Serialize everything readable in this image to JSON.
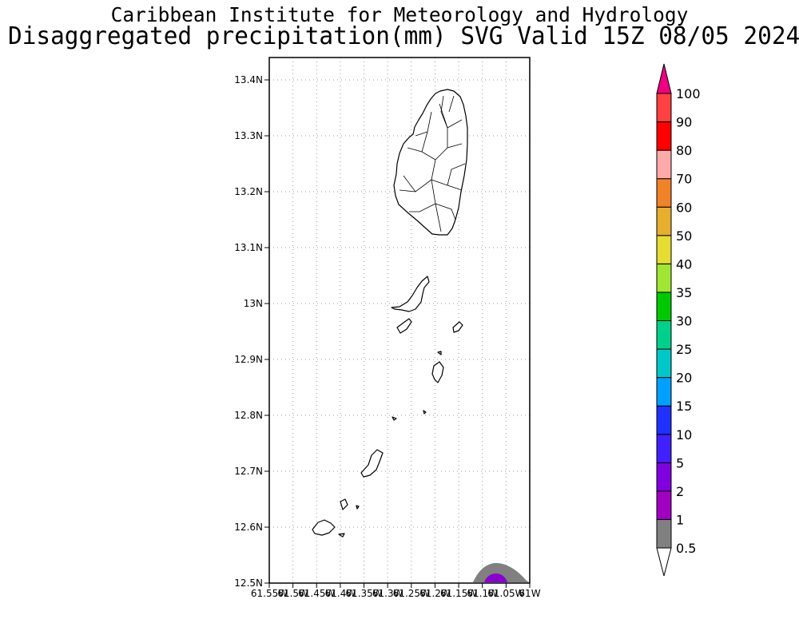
{
  "header": {
    "title_line1": "Caribbean Institute for Meteorology and Hydrology",
    "title_line2": "Disaggregated precipitation(mm) SVG Valid 15Z 08/05 2024"
  },
  "map": {
    "lon_range": [
      -61.55,
      -61.0
    ],
    "lat_range": [
      12.5,
      13.44
    ],
    "lat_ticks": [
      {
        "value": 12.5,
        "label": "12.5N"
      },
      {
        "value": 12.6,
        "label": "12.6N"
      },
      {
        "value": 12.7,
        "label": "12.7N"
      },
      {
        "value": 12.8,
        "label": "12.8N"
      },
      {
        "value": 12.9,
        "label": "12.9N"
      },
      {
        "value": 13.0,
        "label": "13N"
      },
      {
        "value": 13.1,
        "label": "13.1N"
      },
      {
        "value": 13.2,
        "label": "13.2N"
      },
      {
        "value": 13.3,
        "label": "13.3N"
      },
      {
        "value": 13.4,
        "label": "13.4N"
      }
    ],
    "lon_ticks": [
      {
        "value": -61.55,
        "label": "61.55W"
      },
      {
        "value": -61.5,
        "label": "61.5W"
      },
      {
        "value": -61.45,
        "label": "61.45W"
      },
      {
        "value": -61.4,
        "label": "61.4W"
      },
      {
        "value": -61.35,
        "label": "61.35W"
      },
      {
        "value": -61.3,
        "label": "61.3W"
      },
      {
        "value": -61.25,
        "label": "61.25W"
      },
      {
        "value": -61.2,
        "label": "61.2W"
      },
      {
        "value": -61.15,
        "label": "61.15W"
      },
      {
        "value": -61.1,
        "label": "61.1W"
      },
      {
        "value": -61.05,
        "label": "61.05W"
      },
      {
        "value": -61.0,
        "label": "61W"
      }
    ],
    "grid": true
  },
  "colorbar": {
    "labels": [
      "0.5",
      "1",
      "2",
      "5",
      "10",
      "15",
      "20",
      "25",
      "30",
      "35",
      "40",
      "50",
      "60",
      "70",
      "80",
      "90",
      "100"
    ],
    "colors": [
      "#808080",
      "#a000c0",
      "#8000e0",
      "#4020ff",
      "#2030ff",
      "#00a0ff",
      "#00c8c8",
      "#00d08c",
      "#00c800",
      "#a0e632",
      "#e6dc32",
      "#e6af2d",
      "#f08228",
      "#ffaaaa",
      "#ff0000",
      "#ff4040",
      "#f00082"
    ],
    "under_color": "#ffffff",
    "over_color": "#f00082"
  }
}
